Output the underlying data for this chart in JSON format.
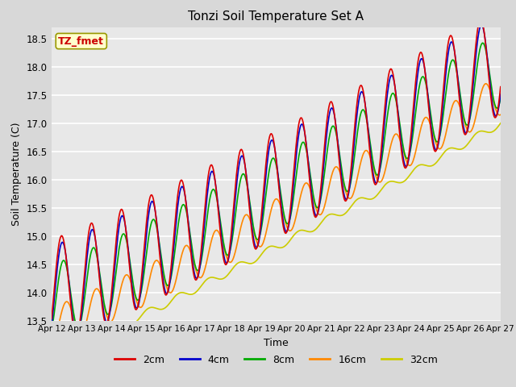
{
  "title": "Tonzi Soil Temperature Set A",
  "xlabel": "Time",
  "ylabel": "Soil Temperature (C)",
  "ylim": [
    13.5,
    18.7
  ],
  "annotation_label": "TZ_fmet",
  "annotation_color": "#cc0000",
  "annotation_bg": "#ffffcc",
  "annotation_border": "#999900",
  "fig_facecolor": "#d8d8d8",
  "plot_facecolor": "#e8e8e8",
  "grid_color": "white",
  "series": {
    "2cm": {
      "color": "#dd0000",
      "lw": 1.2
    },
    "4cm": {
      "color": "#0000cc",
      "lw": 1.2
    },
    "8cm": {
      "color": "#00aa00",
      "lw": 1.2
    },
    "16cm": {
      "color": "#ff8800",
      "lw": 1.2
    },
    "32cm": {
      "color": "#cccc00",
      "lw": 1.2
    }
  },
  "xtick_labels": [
    "Apr 12",
    "Apr 13",
    "Apr 14",
    "Apr 15",
    "Apr 16",
    "Apr 17",
    "Apr 18",
    "Apr 19",
    "Apr 20",
    "Apr 21",
    "Apr 22",
    "Apr 23",
    "Apr 24",
    "Apr 25",
    "Apr 26",
    "Apr 27"
  ],
  "ytick_labels": [
    13.5,
    14.0,
    14.5,
    15.0,
    15.5,
    16.0,
    16.5,
    17.0,
    17.5,
    18.0,
    18.5
  ],
  "legend_entries": [
    "2cm",
    "4cm",
    "8cm",
    "16cm",
    "32cm"
  ],
  "legend_colors": [
    "#dd0000",
    "#0000cc",
    "#00aa00",
    "#ff8800",
    "#cccc00"
  ]
}
